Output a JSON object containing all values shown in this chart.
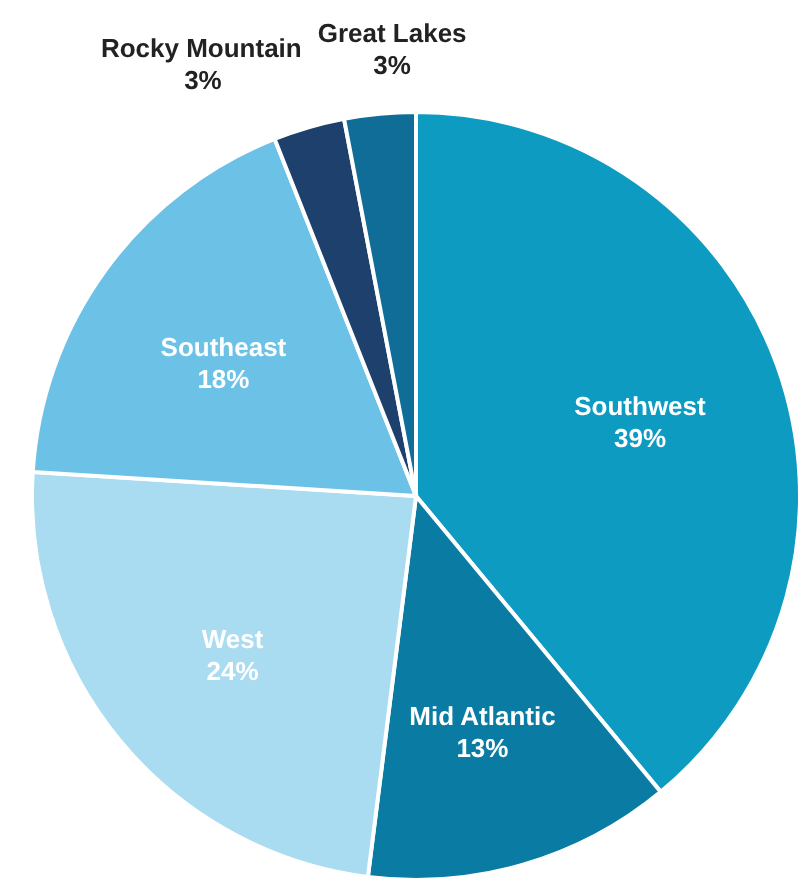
{
  "chart_data": {
    "type": "pie",
    "categories": [
      "Southwest",
      "Mid Atlantic",
      "West",
      "Southeast",
      "Rocky Mountain",
      "Great Lakes"
    ],
    "values": [
      39,
      13,
      24,
      18,
      3,
      3
    ],
    "value_labels": [
      "39%",
      "13%",
      "24%",
      "18%",
      "3%",
      "3%"
    ],
    "colors": [
      "#0e9bc2",
      "#0a7ca3",
      "#a9dcf0",
      "#6cc2e6",
      "#1d416c",
      "#0f6d98"
    ]
  }
}
